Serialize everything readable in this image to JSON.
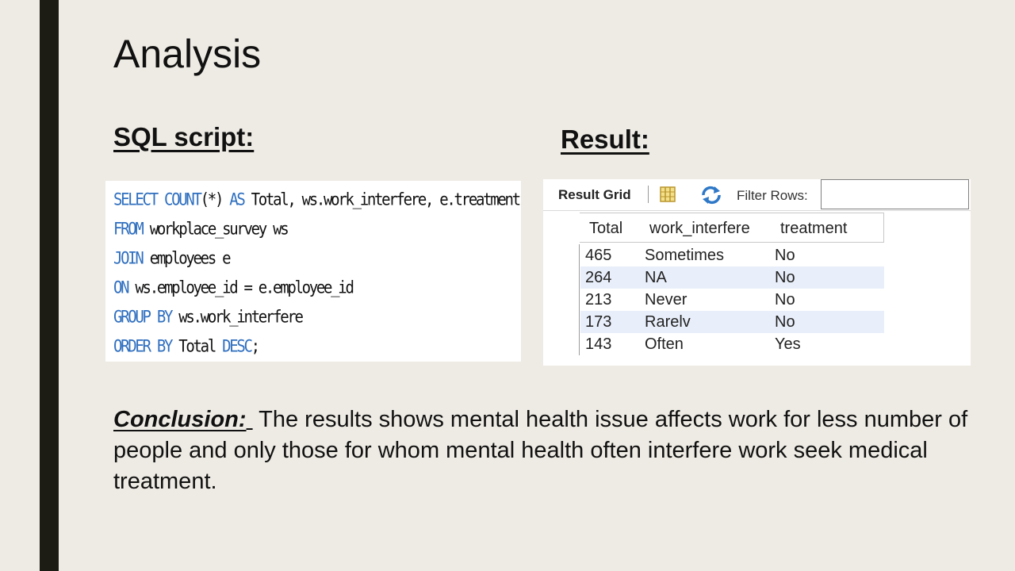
{
  "slide": {
    "title": "Analysis"
  },
  "sql_section": {
    "heading": "SQL script:",
    "lines": [
      [
        {
          "t": "SELECT COUNT",
          "kw": true
        },
        {
          "t": "(*) ",
          "kw": false
        },
        {
          "t": "AS",
          "kw": true
        },
        {
          "t": " Total, ws.work_interfere, e.treatment",
          "kw": false
        }
      ],
      [
        {
          "t": "FROM",
          "kw": true
        },
        {
          "t": " workplace_survey ws",
          "kw": false
        }
      ],
      [
        {
          "t": "JOIN",
          "kw": true
        },
        {
          "t": " employees e",
          "kw": false
        }
      ],
      [
        {
          "t": "ON",
          "kw": true
        },
        {
          "t": " ws.employee_id = e.employee_id",
          "kw": false
        }
      ],
      [
        {
          "t": "GROUP BY",
          "kw": true
        },
        {
          "t": " ws.work_interfere",
          "kw": false
        }
      ],
      [
        {
          "t": "ORDER BY",
          "kw": true
        },
        {
          "t": " Total ",
          "kw": false
        },
        {
          "t": "DESC",
          "kw": true
        },
        {
          "t": ";",
          "kw": false
        }
      ]
    ]
  },
  "result_section": {
    "heading": "Result:",
    "toolbar": {
      "grid_label": "Result Grid",
      "filter_label": "Filter Rows:",
      "filter_value": "",
      "grid_icon": "grid-layout-icon",
      "refresh_icon": "refresh-icon"
    },
    "columns": [
      "Total",
      "work_interfere",
      "treatment"
    ],
    "rows": [
      [
        "465",
        "Sometimes",
        "No"
      ],
      [
        "264",
        "NA",
        "No"
      ],
      [
        "213",
        "Never",
        "No"
      ],
      [
        "173",
        "Rarelv",
        "No"
      ],
      [
        "143",
        "Often",
        "Yes"
      ]
    ]
  },
  "conclusion": {
    "label": "Conclusion:",
    "text": "The results shows mental health issue affects work for less number of people and only those for whom mental health often interfere work seek medical treatment."
  },
  "colors": {
    "background": "#eeebe4",
    "left_bar": "#1c1c14",
    "sql_keyword": "#2f6fbf",
    "alt_row": "#e9effa"
  }
}
